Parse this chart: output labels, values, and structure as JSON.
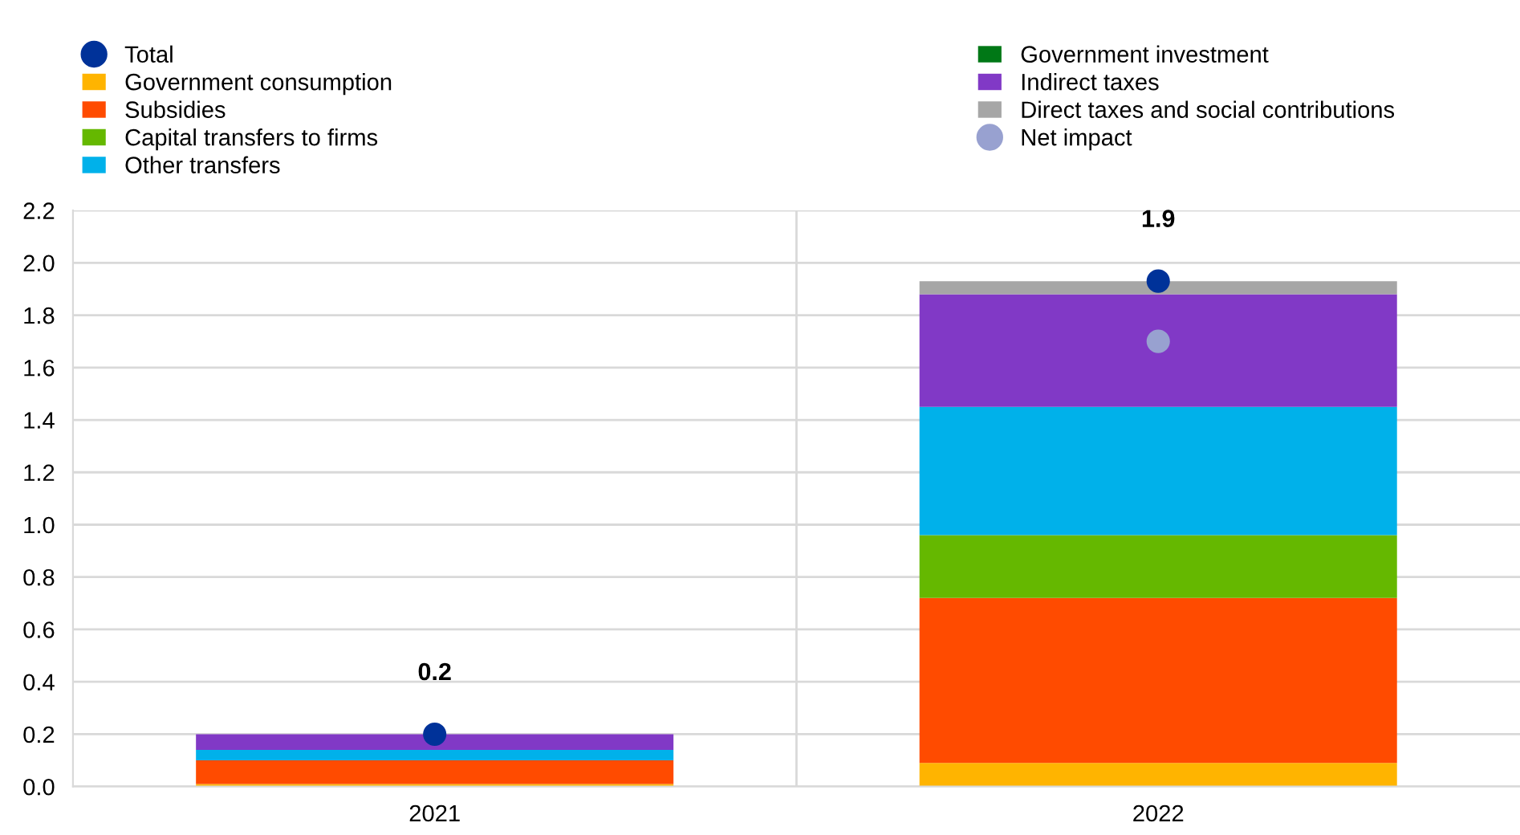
{
  "chart_data": {
    "type": "bar",
    "stacked": true,
    "categories": [
      "2021",
      "2022"
    ],
    "series": [
      {
        "name": "Total",
        "type": "scatter",
        "color": "#003299",
        "values": [
          0.2,
          1.93
        ],
        "value_labels": [
          "0.2",
          "1.9"
        ]
      },
      {
        "name": "Government consumption",
        "color": "#ffb400",
        "values": [
          0.01,
          0.09
        ]
      },
      {
        "name": "Subsidies",
        "color": "#ff4b00",
        "values": [
          0.09,
          0.63
        ]
      },
      {
        "name": "Capital transfers to firms",
        "color": "#65b800",
        "values": [
          null,
          0.24
        ]
      },
      {
        "name": "Other transfers",
        "color": "#00b1ea",
        "values": [
          0.04,
          0.49
        ]
      },
      {
        "name": "Government investment",
        "color": "#007816",
        "values": [
          null,
          null
        ]
      },
      {
        "name": "Indirect taxes",
        "color": "#8139c6",
        "values": [
          0.06,
          0.43
        ]
      },
      {
        "name": "Direct taxes and social contributions",
        "color": "#a6a6a6",
        "values": [
          null,
          0.05
        ]
      },
      {
        "name": "Net impact",
        "type": "scatter",
        "color": "#98a1d0",
        "values": [
          null,
          1.7
        ]
      }
    ],
    "ylim": [
      0,
      2.2
    ],
    "yticks": [
      {
        "value": 0,
        "label": "0.0"
      },
      0.2,
      0.4,
      0.6,
      0.8,
      {
        "value": 1,
        "label": "1.0"
      },
      1.2,
      1.4,
      1.6,
      1.8,
      {
        "value": 2,
        "label": "2.0"
      },
      2.2
    ],
    "grid": true,
    "legend": "top",
    "marker": "circle"
  }
}
